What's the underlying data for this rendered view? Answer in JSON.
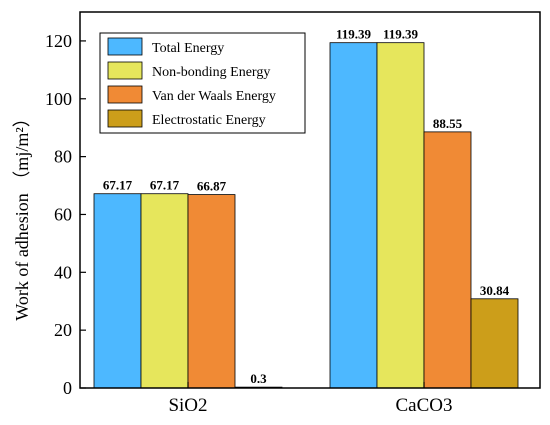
{
  "chart_data": {
    "type": "bar",
    "ylabel": "Work of adhesion",
    "ylabel_unit": "（mj/m²）",
    "xlabel": "",
    "ylim": [
      0,
      130
    ],
    "yticks": [
      0,
      20,
      40,
      60,
      80,
      100,
      120
    ],
    "grid": false,
    "legend_position": "top-left",
    "categories": [
      "SiO2",
      "CaCO3"
    ],
    "series": [
      {
        "name": "Total Energy",
        "color": "#4db8ff",
        "values": [
          67.17,
          119.39
        ],
        "labels": [
          "67.17",
          "119.39"
        ]
      },
      {
        "name": "Non-bonding Energy",
        "color": "#e6e65c",
        "values": [
          67.17,
          119.39
        ],
        "labels": [
          "67.17",
          "119.39"
        ]
      },
      {
        "name": "Van der Waals Energy",
        "color": "#f08a35",
        "values": [
          66.87,
          88.55
        ],
        "labels": [
          "66.87",
          "88.55"
        ]
      },
      {
        "name": "Electrostatic Energy",
        "color": "#cc9e1a",
        "values": [
          0.3,
          30.84
        ],
        "labels": [
          "0.3",
          "30.84"
        ]
      }
    ]
  }
}
